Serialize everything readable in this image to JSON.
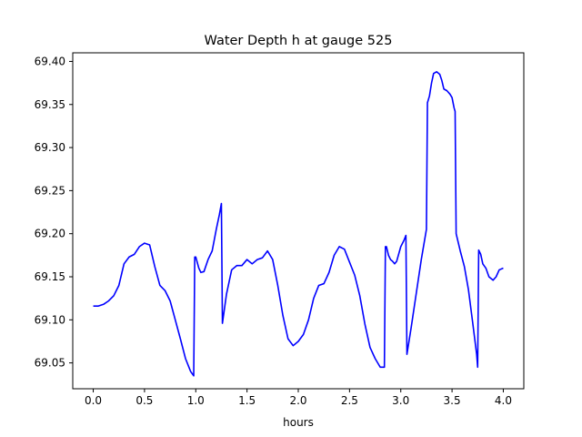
{
  "chart_data": {
    "type": "line",
    "title": "Water Depth h at gauge 525",
    "xlabel": "hours",
    "ylabel": "",
    "xlim": [
      -0.2,
      4.2
    ],
    "ylim": [
      69.02,
      69.41
    ],
    "grid": false,
    "x_ticks": [
      0.0,
      0.5,
      1.0,
      1.5,
      2.0,
      2.5,
      3.0,
      3.5,
      4.0
    ],
    "x_tick_labels": [
      "0.0",
      "0.5",
      "1.0",
      "1.5",
      "2.0",
      "2.5",
      "3.0",
      "3.5",
      "4.0"
    ],
    "y_ticks": [
      69.05,
      69.1,
      69.15,
      69.2,
      69.25,
      69.3,
      69.35,
      69.4
    ],
    "y_tick_labels": [
      "69.05",
      "69.10",
      "69.15",
      "69.20",
      "69.25",
      "69.30",
      "69.35",
      "69.40"
    ],
    "series": [
      {
        "color": "#0000ff",
        "x": [
          0.0,
          0.05,
          0.1,
          0.15,
          0.2,
          0.25,
          0.3,
          0.35,
          0.4,
          0.45,
          0.5,
          0.55,
          0.6,
          0.65,
          0.7,
          0.75,
          0.8,
          0.85,
          0.9,
          0.95,
          0.98,
          0.99,
          1.0,
          1.03,
          1.05,
          1.08,
          1.12,
          1.16,
          1.2,
          1.23,
          1.25,
          1.26,
          1.3,
          1.35,
          1.4,
          1.45,
          1.5,
          1.55,
          1.6,
          1.65,
          1.7,
          1.75,
          1.8,
          1.85,
          1.9,
          1.95,
          2.0,
          2.05,
          2.1,
          2.15,
          2.2,
          2.25,
          2.3,
          2.35,
          2.4,
          2.45,
          2.5,
          2.55,
          2.6,
          2.65,
          2.7,
          2.75,
          2.8,
          2.84,
          2.85,
          2.86,
          2.88,
          2.9,
          2.92,
          2.94,
          2.96,
          3.0,
          3.03,
          3.05,
          3.06,
          3.1,
          3.15,
          3.2,
          3.25,
          3.26,
          3.28,
          3.3,
          3.32,
          3.35,
          3.38,
          3.4,
          3.42,
          3.45,
          3.48,
          3.5,
          3.52,
          3.53,
          3.54,
          3.58,
          3.62,
          3.66,
          3.7,
          3.74,
          3.75,
          3.76,
          3.78,
          3.8,
          3.83,
          3.86,
          3.9,
          3.93,
          3.96,
          4.0
        ],
        "y": [
          69.116,
          69.116,
          69.118,
          69.122,
          69.128,
          69.14,
          69.165,
          69.173,
          69.176,
          69.185,
          69.189,
          69.187,
          69.162,
          69.14,
          69.134,
          69.122,
          69.1,
          69.078,
          69.055,
          69.04,
          69.035,
          69.173,
          69.173,
          69.16,
          69.155,
          69.156,
          69.17,
          69.18,
          69.205,
          69.222,
          69.235,
          69.096,
          69.13,
          69.158,
          69.163,
          69.163,
          69.17,
          69.165,
          69.17,
          69.172,
          69.18,
          69.17,
          69.14,
          69.105,
          69.078,
          69.07,
          69.075,
          69.083,
          69.1,
          69.125,
          69.14,
          69.142,
          69.155,
          69.175,
          69.185,
          69.182,
          69.167,
          69.152,
          69.128,
          69.095,
          69.068,
          69.055,
          69.045,
          69.045,
          69.185,
          69.185,
          69.175,
          69.17,
          69.168,
          69.165,
          69.168,
          69.185,
          69.192,
          69.198,
          69.06,
          69.09,
          69.13,
          69.17,
          69.205,
          69.352,
          69.36,
          69.375,
          69.386,
          69.388,
          69.385,
          69.378,
          69.368,
          69.366,
          69.362,
          69.358,
          69.346,
          69.342,
          69.2,
          69.18,
          69.162,
          69.135,
          69.098,
          69.06,
          69.045,
          69.181,
          69.176,
          69.165,
          69.16,
          69.15,
          69.146,
          69.15,
          69.158,
          69.16
        ]
      }
    ]
  }
}
